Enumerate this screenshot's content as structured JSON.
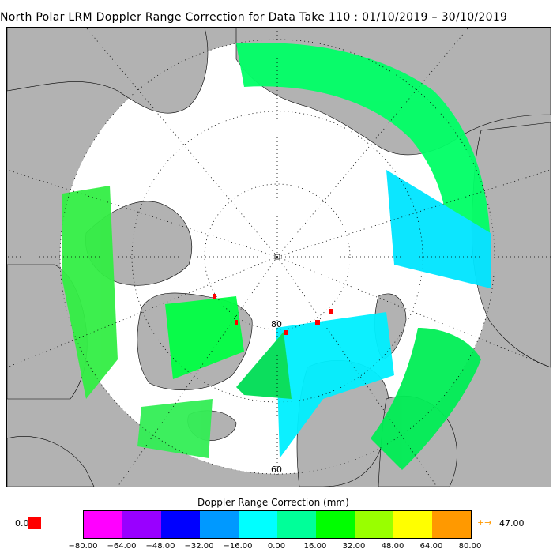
{
  "title": "North Polar LRM Doppler Range Correction for Data Take 110 : 01/10/2019 – 30/10/2019",
  "map": {
    "latitude_labels": [
      "80",
      "60"
    ],
    "colors": {
      "land": "#b2b2b2",
      "ocean": "#ffffff",
      "grid": "#000000"
    }
  },
  "legend": {
    "title": "Doppler Range Correction (mm)",
    "ticks": [
      "−80.00",
      "−64.00",
      "−48.00",
      "−32.00",
      "−16.00",
      "0.00",
      "16.00",
      "32.00",
      "48.00",
      "64.00",
      "80.00"
    ],
    "colors": [
      "#ff00ff",
      "#9900ff",
      "#0000ff",
      "#0099ff",
      "#00ffff",
      "#00ff99",
      "#00ff00",
      "#99ff00",
      "#ffff00",
      "#ff9900"
    ],
    "zero_label": "0.0",
    "zero_color": "#ff0000",
    "over_arrow": "+→",
    "over_value": "47.00",
    "over_color": "#ff9900"
  }
}
